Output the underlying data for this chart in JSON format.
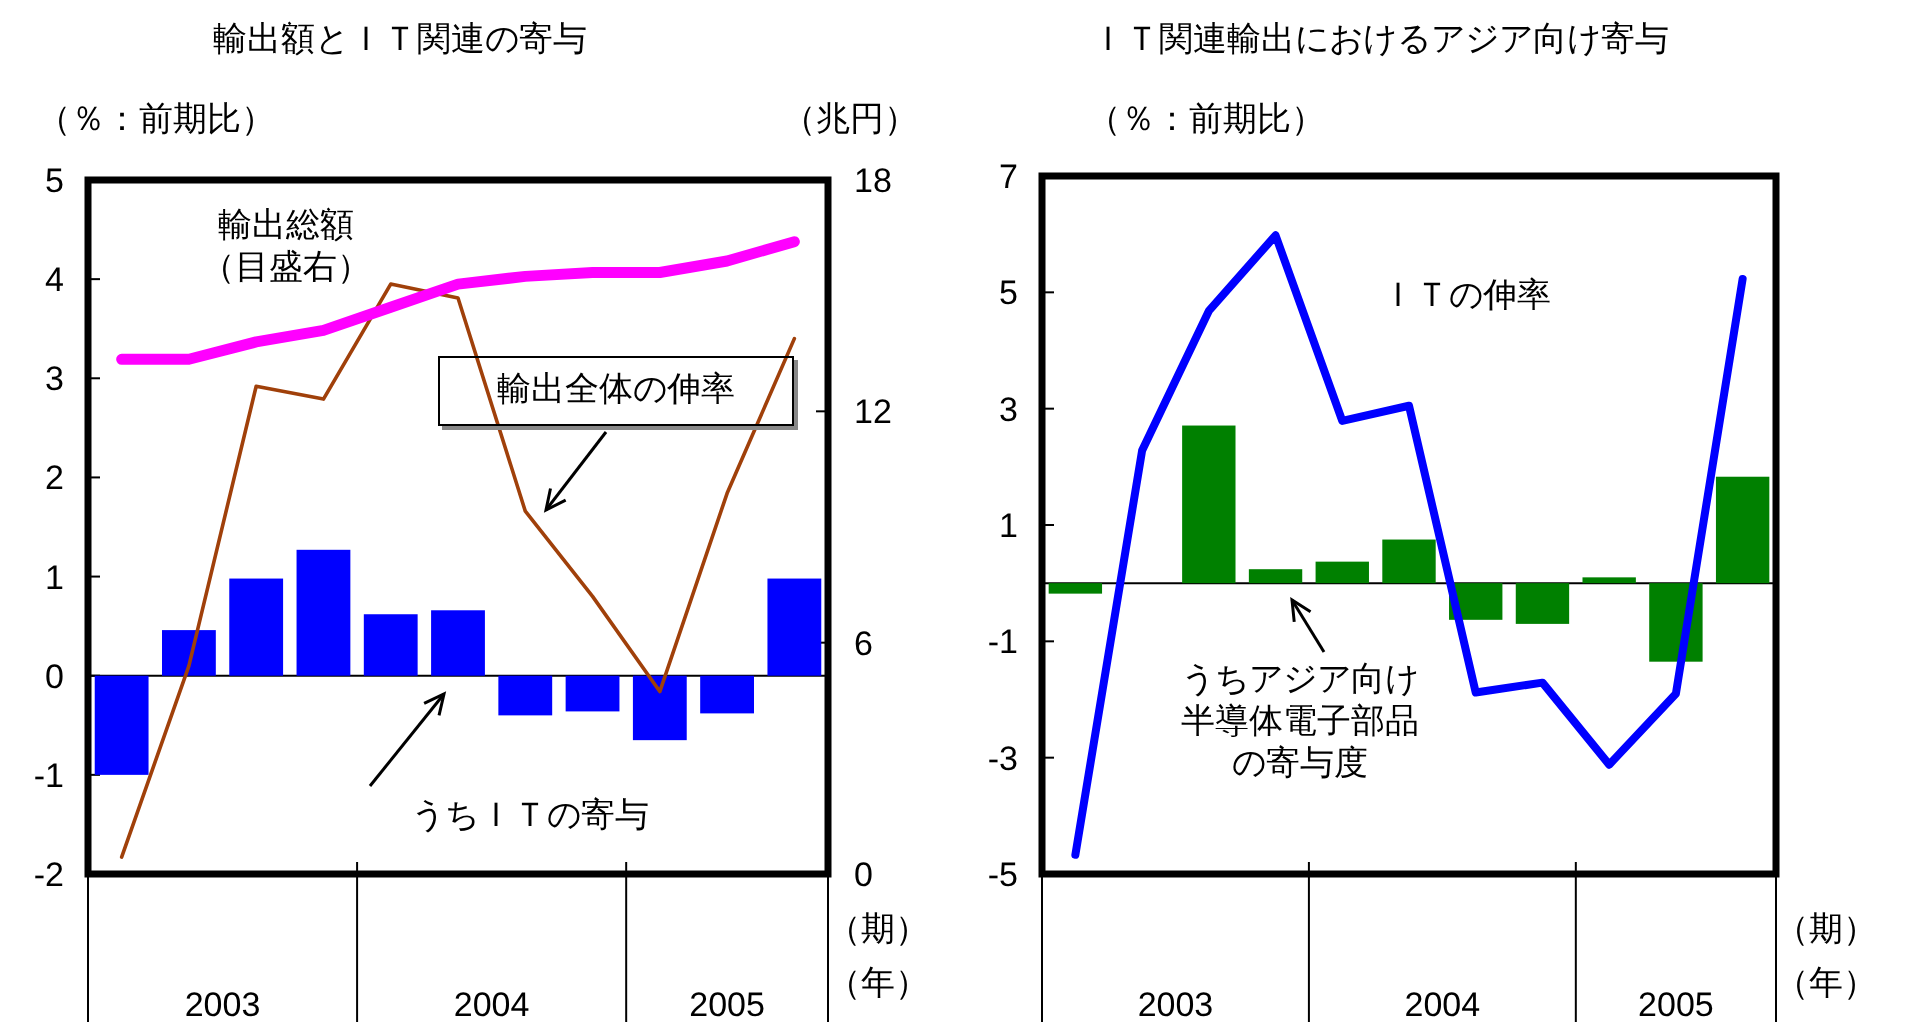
{
  "chart_data": [
    {
      "type": "bar",
      "title": "輸出額とＩＴ関連の寄与",
      "ylabel": "（％：前期比）",
      "y2label": "（兆円）",
      "xlabel": "（期）",
      "x": [
        2003.125,
        2003.375,
        2003.625,
        2003.875,
        2004.125,
        2004.375,
        2004.625,
        2004.875,
        2005.125,
        2005.375,
        2005.625
      ],
      "xlim": [
        2003,
        2005.75
      ],
      "xticks": [
        {
          "value": 2003,
          "label": null
        },
        {
          "value": 2003.5,
          "label": "2003"
        },
        {
          "value": 2004,
          "label": null
        },
        {
          "value": 2004.5,
          "label": "2004"
        },
        {
          "value": 2005,
          "label": null
        },
        {
          "value": 2005.375,
          "label": "2005"
        },
        {
          "value": 2005.75,
          "label": null
        }
      ],
      "ylim": [
        -2,
        5
      ],
      "yticks": [
        -2,
        -1,
        0,
        1,
        2,
        3,
        4,
        5
      ],
      "y2lim": [
        0,
        18
      ],
      "y2ticks": [
        0,
        6,
        12,
        18
      ],
      "ref_lines": [
        {
          "axis": "y",
          "value": 0,
          "color": "#000000"
        }
      ],
      "series": [
        {
          "name": "うちＩＴの寄与",
          "color": "#0000ff",
          "values": [
            -1.0,
            0.46,
            0.98,
            1.27,
            0.62,
            0.66,
            -0.4,
            -0.36,
            -0.65,
            -0.38,
            0.98
          ]
        },
        {
          "name": "輸出全体の伸率",
          "type": "line",
          "color": "#a0400a",
          "values": [
            -1.83,
            0.1,
            2.92,
            2.79,
            3.95,
            3.81,
            1.66,
            0.8,
            -0.16,
            1.84,
            3.4
          ]
        },
        {
          "name": "輸出総額（目盛右）",
          "type": "line",
          "axis": "y2",
          "color": "#ff00ff",
          "values": [
            13.35,
            13.35,
            13.8,
            14.1,
            14.7,
            15.3,
            15.5,
            15.6,
            15.6,
            15.9,
            16.4
          ]
        }
      ],
      "annotations": [
        "（年）"
      ]
    },
    {
      "type": "bar",
      "title": "ＩＴ関連輸出におけるアジア向け寄与",
      "ylabel": "（％：前期比）",
      "xlabel": "（期）",
      "x": [
        2003.125,
        2003.375,
        2003.625,
        2003.875,
        2004.125,
        2004.375,
        2004.625,
        2004.875,
        2005.125,
        2005.375,
        2005.625
      ],
      "xlim": [
        2003,
        2005.75
      ],
      "xticks": [
        {
          "value": 2003,
          "label": null
        },
        {
          "value": 2003.5,
          "label": "2003"
        },
        {
          "value": 2004,
          "label": null
        },
        {
          "value": 2004.5,
          "label": "2004"
        },
        {
          "value": 2005,
          "label": null
        },
        {
          "value": 2005.375,
          "label": "2005"
        },
        {
          "value": 2005.75,
          "label": null
        }
      ],
      "ylim": [
        -5,
        7
      ],
      "yticks": [
        -5,
        -3,
        -1,
        1,
        3,
        5,
        7
      ],
      "ref_lines": [
        {
          "axis": "y",
          "value": 0,
          "color": "#000000"
        }
      ],
      "series": [
        {
          "name": "うちアジア向け半導体電子部品の寄与度",
          "color": "#008000",
          "values": [
            -0.18,
            0.0,
            2.71,
            0.24,
            0.37,
            0.75,
            -0.63,
            -0.7,
            0.1,
            -1.35,
            1.83
          ]
        },
        {
          "name": "ＩＴの伸率",
          "type": "line",
          "color": "#0000ff",
          "values": [
            -4.67,
            2.28,
            4.68,
            5.98,
            2.79,
            3.05,
            -1.88,
            -1.71,
            -3.12,
            -1.9,
            5.23
          ]
        }
      ],
      "annotations": [
        "（年）"
      ]
    }
  ]
}
